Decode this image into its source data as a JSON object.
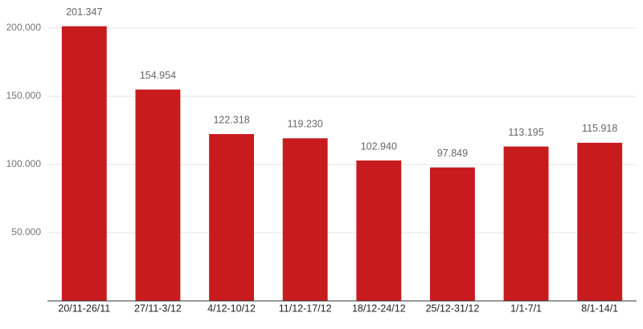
{
  "chart_data": {
    "type": "bar",
    "categories": [
      "20/11-26/11",
      "27/11-3/12",
      "4/12-10/12",
      "11/12-17/12",
      "18/12-24/12",
      "25/12-31/12",
      "1/1-7/1",
      "8/1-14/1"
    ],
    "values": [
      201347,
      154954,
      122318,
      119230,
      102940,
      97849,
      113195,
      115918
    ],
    "value_labels": [
      "201.347",
      "154.954",
      "122.318",
      "119.230",
      "102.940",
      "97.849",
      "113.195",
      "115.918"
    ],
    "color": "#c81b1e",
    "ylim": [
      0,
      220000
    ],
    "yticks": [
      {
        "value": 50000,
        "label": "50.000"
      },
      {
        "value": 100000,
        "label": "100.000"
      },
      {
        "value": 150000,
        "label": "150.000"
      },
      {
        "value": 200000,
        "label": "200.000"
      }
    ],
    "grid": true
  }
}
